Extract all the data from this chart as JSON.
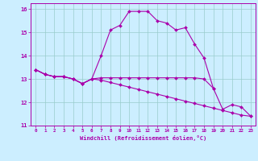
{
  "xlabel": "Windchill (Refroidissement éolien,°C)",
  "background_color": "#cceeff",
  "line_color": "#aa00aa",
  "grid_color": "#99cccc",
  "x_values": [
    0,
    1,
    2,
    3,
    4,
    5,
    6,
    7,
    8,
    9,
    10,
    11,
    12,
    13,
    14,
    15,
    16,
    17,
    18,
    19,
    20,
    21,
    22,
    23
  ],
  "curve1_y": [
    13.4,
    13.2,
    13.1,
    13.1,
    13.0,
    12.8,
    13.0,
    14.0,
    15.1,
    15.3,
    15.9,
    15.9,
    15.9,
    15.5,
    15.4,
    15.1,
    15.2,
    14.5,
    13.9,
    12.6,
    null,
    null,
    null,
    null
  ],
  "curve2_y": [
    13.4,
    13.2,
    13.1,
    13.1,
    13.0,
    12.8,
    13.0,
    13.05,
    13.05,
    13.05,
    13.05,
    13.05,
    13.05,
    13.05,
    13.05,
    13.05,
    13.05,
    13.05,
    13.0,
    12.6,
    11.7,
    11.9,
    11.8,
    11.4
  ],
  "curve3_y": [
    13.4,
    13.2,
    13.1,
    13.1,
    13.0,
    12.8,
    13.0,
    12.95,
    12.85,
    12.75,
    12.65,
    12.55,
    12.45,
    12.35,
    12.25,
    12.15,
    12.05,
    11.95,
    11.85,
    11.75,
    11.65,
    11.55,
    11.45,
    11.4
  ],
  "ylim": [
    11.0,
    16.25
  ],
  "xlim": [
    -0.5,
    23.5
  ],
  "yticks": [
    11,
    12,
    13,
    14,
    15,
    16
  ],
  "xticks": [
    0,
    1,
    2,
    3,
    4,
    5,
    6,
    7,
    8,
    9,
    10,
    11,
    12,
    13,
    14,
    15,
    16,
    17,
    18,
    19,
    20,
    21,
    22,
    23
  ]
}
